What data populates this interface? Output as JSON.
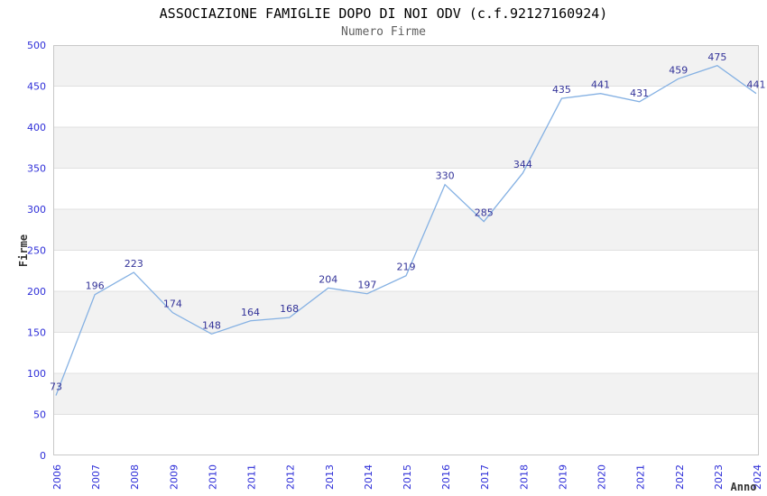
{
  "chart_data": {
    "type": "line",
    "title": "ASSOCIAZIONE FAMIGLIE DOPO DI NOI ODV (c.f.92127160924)",
    "subtitle": "Numero Firme",
    "xlabel": "Anno",
    "ylabel": "Firme",
    "categories": [
      "2006",
      "2007",
      "2008",
      "2009",
      "2010",
      "2011",
      "2012",
      "2013",
      "2014",
      "2015",
      "2016",
      "2017",
      "2018",
      "2019",
      "2020",
      "2021",
      "2022",
      "2023",
      "2024"
    ],
    "values": [
      73,
      196,
      223,
      174,
      148,
      164,
      168,
      204,
      197,
      219,
      330,
      285,
      344,
      435,
      441,
      431,
      459,
      475,
      441
    ],
    "ylim": [
      0,
      500
    ],
    "ytick_step": 50,
    "legend": "none",
    "grid": "horizontal-bands-alternating",
    "data_labels_visible": true,
    "colors": {
      "line": "#85b1e3",
      "data_label": "#333399",
      "tick_label": "#2e2ed8",
      "band": "#f2f2f2",
      "band_alt": "#ffffff",
      "gridline": "#e0e0e0",
      "border": "#c8c8c8",
      "title": "#000000",
      "subtitle": "#5f5f5f",
      "axis_title": "#333333",
      "background": "#ffffff"
    }
  }
}
